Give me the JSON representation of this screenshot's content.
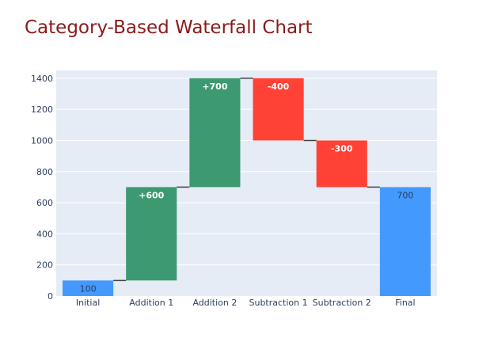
{
  "chart_data": {
    "type": "waterfall",
    "title": "Category-Based Waterfall Chart",
    "categories": [
      "Initial",
      "Addition 1",
      "Addition 2",
      "Subtraction 1",
      "Subtraction 2",
      "Final"
    ],
    "measures": [
      "absolute",
      "relative",
      "relative",
      "relative",
      "relative",
      "total"
    ],
    "values": [
      100,
      600,
      700,
      -400,
      -300,
      700
    ],
    "text": [
      "100",
      "+600",
      "+700",
      "-400",
      "-300",
      "700"
    ],
    "ylim": [
      0,
      1450
    ],
    "yticks": [
      0,
      200,
      400,
      600,
      800,
      1000,
      1200,
      1400
    ],
    "grid": true,
    "colors": {
      "title": "#8b1a1a",
      "plot_bg": "#e5ecf6",
      "increasing": "#3d9970",
      "decreasing": "#ff4136",
      "total": "#4499ff",
      "connector": "#444444",
      "tick_text": "#2a3f5f"
    }
  }
}
